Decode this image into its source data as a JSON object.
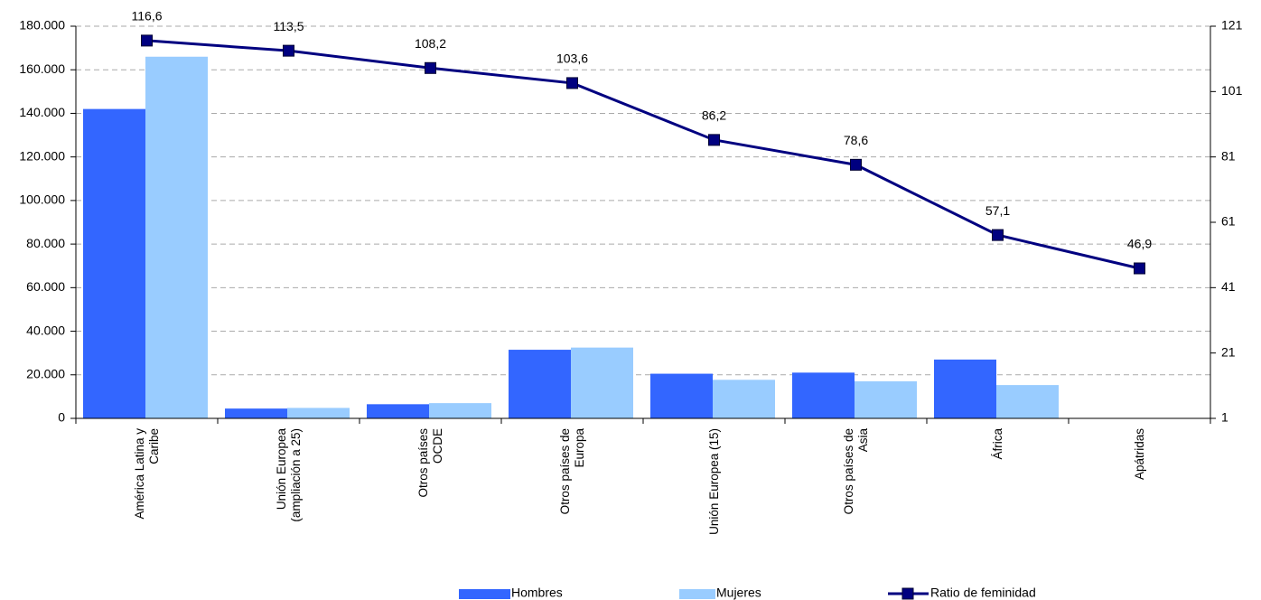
{
  "chart_data": {
    "type": "bar",
    "categories": [
      "América Latina y Caribe",
      "Unión Europea (ampliación a 25)",
      "Otros países OCDE",
      "Otros países de Europa",
      "Unión Europea  (15)",
      "Otros países de Asia",
      "África",
      "Apátridas"
    ],
    "series": [
      {
        "name": "Hombres",
        "color": "#3366ff",
        "values": [
          142000,
          4500,
          6500,
          31500,
          20500,
          21000,
          27000,
          64
        ]
      },
      {
        "name": "Mujeres",
        "color": "#99ccff",
        "values": [
          166000,
          4800,
          7000,
          32500,
          17700,
          17000,
          15300,
          30
        ]
      },
      {
        "name": "Ratio de feminidad",
        "type": "line",
        "axis": "y2",
        "color": "#000080",
        "values": [
          116.6,
          113.5,
          108.2,
          103.6,
          86.2,
          78.6,
          57.1,
          46.9
        ],
        "value_labels": [
          "116,6",
          "113,5",
          "108,2",
          "103,6",
          "86,2",
          "78,6",
          "57,1",
          "46,9"
        ]
      }
    ],
    "ylim": [
      0,
      180000
    ],
    "yticks": [
      0,
      {
        "value": 20000,
        "label": "20.000"
      },
      {
        "value": 40000,
        "label": "40.000"
      },
      {
        "value": 60000,
        "label": "60.000"
      },
      {
        "value": 80000,
        "label": "80.000"
      },
      {
        "value": 100000,
        "label": "100.000"
      },
      {
        "value": 120000,
        "label": "120.000"
      },
      {
        "value": 140000,
        "label": "140.000"
      },
      {
        "value": 160000,
        "label": "160.000"
      },
      {
        "value": 180000,
        "label": "180.000"
      }
    ],
    "y2lim": [
      1,
      121
    ],
    "y2ticks": [
      1,
      21,
      41,
      61,
      81,
      101,
      121
    ],
    "grid": true,
    "legend": "bottom"
  }
}
